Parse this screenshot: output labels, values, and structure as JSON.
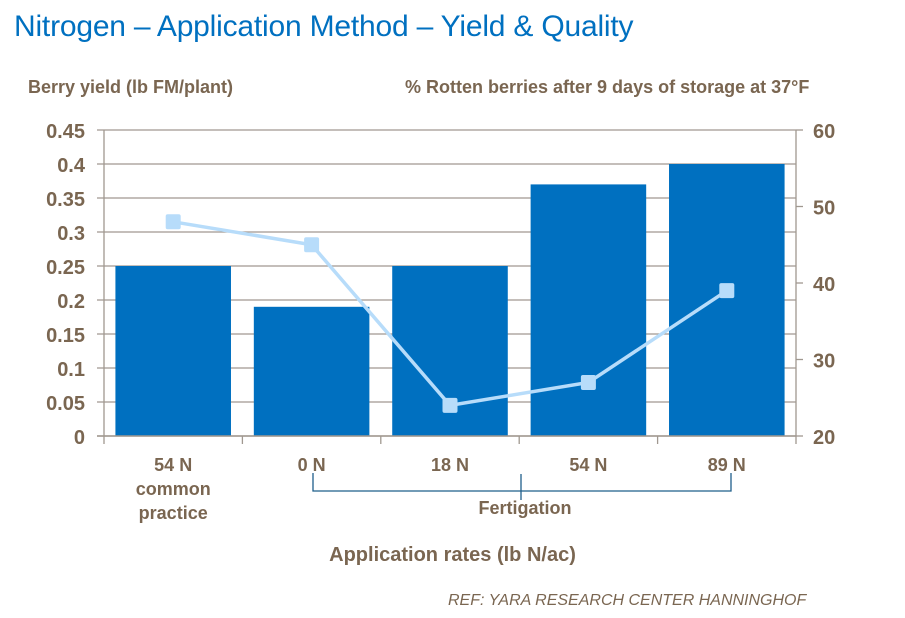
{
  "title": "Nitrogen – Application Method – Yield & Quality",
  "reference": "REF:  YARA RESEARCH CENTER HANNINGHOF",
  "chart_data": {
    "type": "bar",
    "title": "Nitrogen – Application Method – Yield & Quality",
    "xlabel": "Application rates (lb N/ac)",
    "ylabel": "Berry yield  (lb FM/plant)",
    "y2label": "% Rotten berries after 9 days of storage at 37°F",
    "categories": [
      "54 N\ncommon\npractice",
      "0 N",
      "18 N",
      "54 N",
      "89 N"
    ],
    "category_group": {
      "label": "Fertigation",
      "from_index": 1,
      "to_index": 4
    },
    "ylim": [
      0,
      0.45
    ],
    "y_ticks": [
      "0",
      "0.05",
      "0.1",
      "0.15",
      "0.2",
      "0.25",
      "0.3",
      "0.35",
      "0.4",
      "0.45"
    ],
    "y2lim": [
      20,
      60
    ],
    "y2_ticks": [
      "20",
      "30",
      "40",
      "50",
      "60"
    ],
    "grid": true,
    "series": [
      {
        "name": "Berry yield",
        "type": "bar",
        "axis": "left",
        "color": "#0070c0",
        "values": [
          0.25,
          0.19,
          0.25,
          0.37,
          0.4
        ]
      },
      {
        "name": "% Rotten berries",
        "type": "line",
        "axis": "right",
        "color": "#b7dcfa",
        "marker": "square",
        "values": [
          48,
          45,
          24,
          27,
          39
        ]
      }
    ]
  }
}
